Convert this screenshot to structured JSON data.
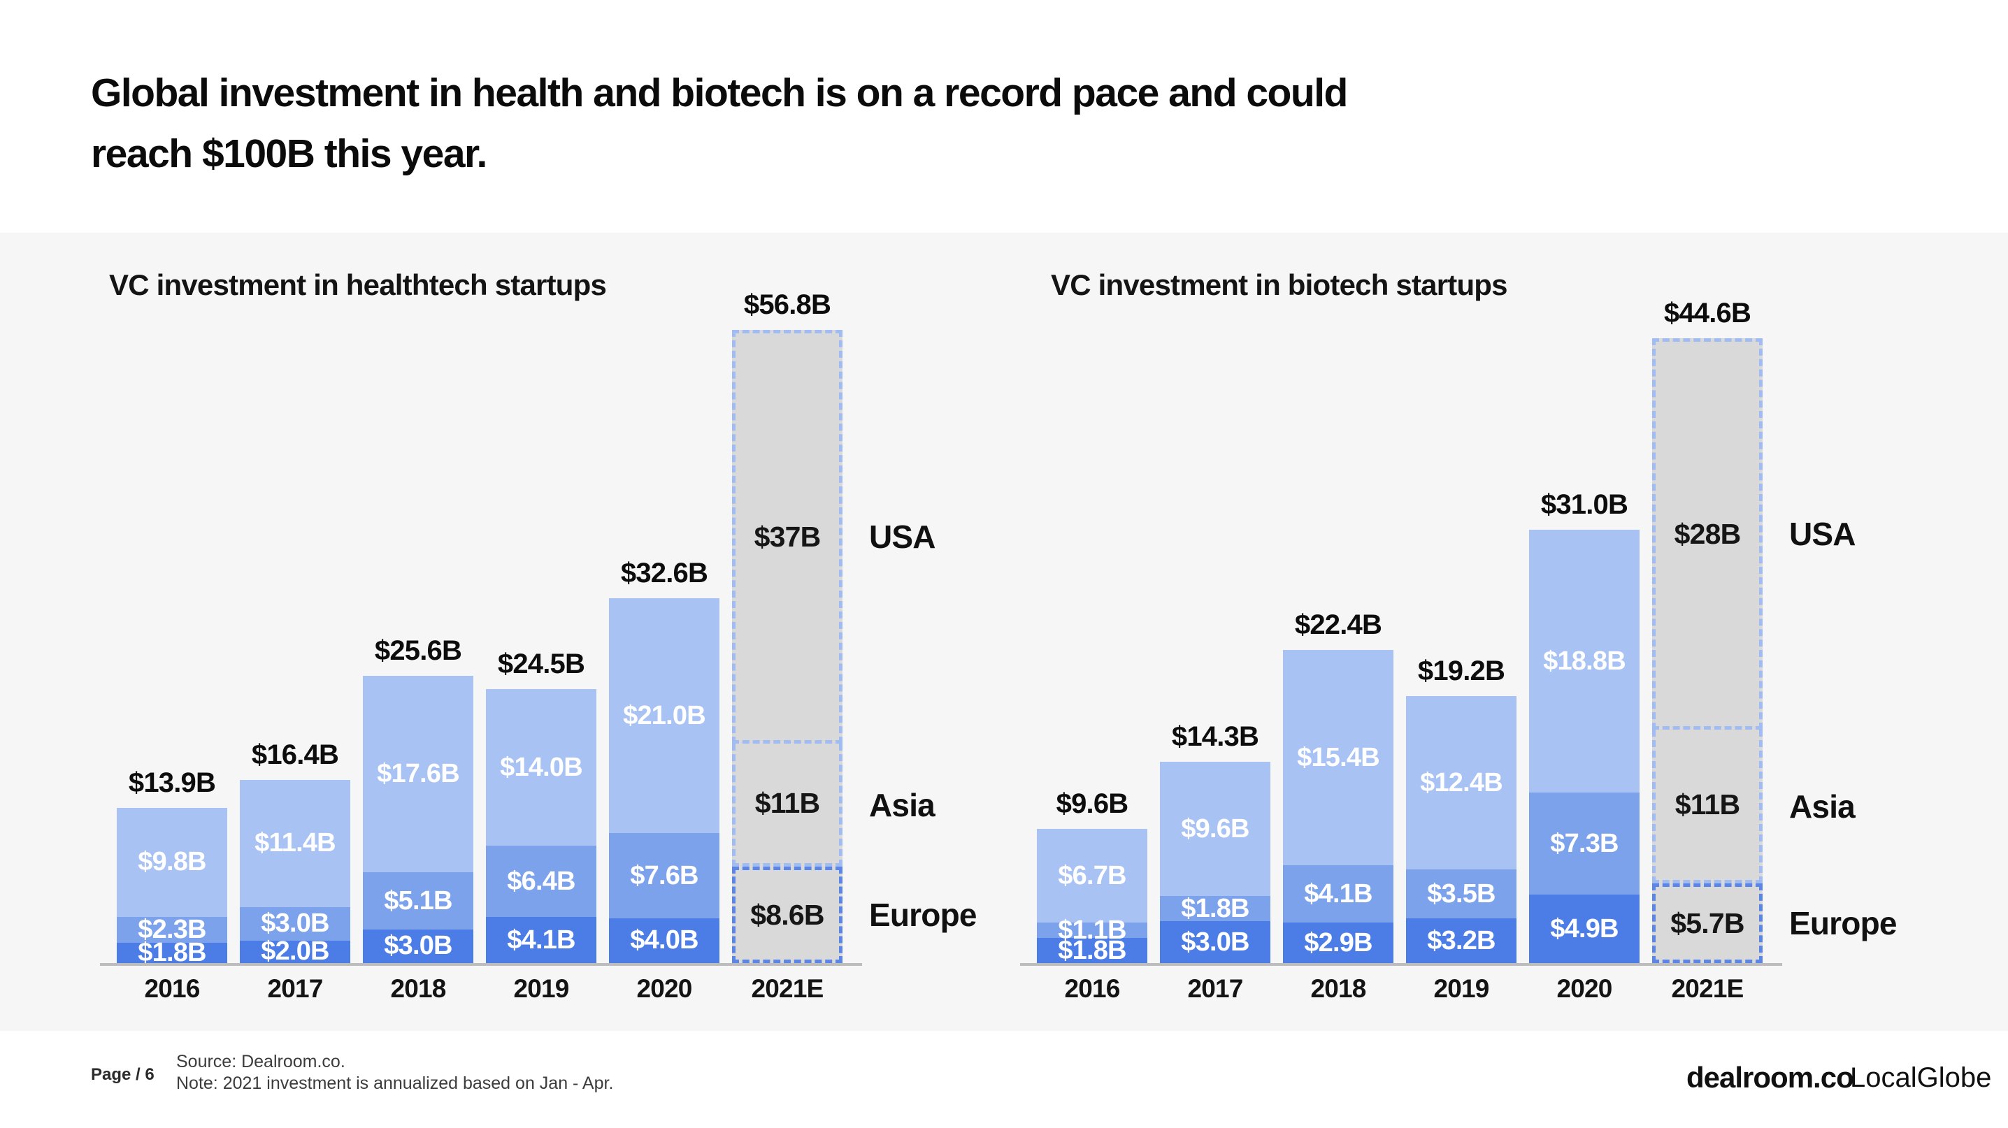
{
  "slide": {
    "title_lines": [
      "Global investment in health and biotech is on a record pace and could",
      "reach $100B this year."
    ]
  },
  "footer": {
    "page_label": "Page / 6",
    "source": "Source: Dealroom.co.",
    "note": "Note: 2021 investment is annualized based on Jan - Apr.",
    "logo_primary": "dealroom.co",
    "logo_secondary": "LocalGlobe"
  },
  "colors": {
    "usa_fill": "#a7c2f3",
    "asia_fill": "#7ca2ec",
    "europe_fill": "#4c7de6",
    "estimate_fill": "#d9d9d9",
    "estimate_border_light": "#a0bcf2",
    "estimate_border_strong": "#5b86e8",
    "band_background": "#f6f6f7",
    "axis_line": "#bdbdbd",
    "label_on_bar": "#ffffff",
    "text_primary": "#111111"
  },
  "chart_data": [
    {
      "id": "healthtech",
      "type": "bar",
      "stacked": true,
      "title": "VC investment in healthtech startups",
      "categories": [
        "2016",
        "2017",
        "2018",
        "2019",
        "2020",
        "2021E"
      ],
      "estimate_category": "2021E",
      "ylim": [
        0,
        56.8
      ],
      "grid": false,
      "legend_position": "right-of-estimate-bar",
      "series": [
        {
          "name": "USA",
          "values": [
            9.8,
            11.4,
            17.6,
            14.0,
            21.0,
            37
          ],
          "labels": [
            "$9.8B",
            "$11.4B",
            "$17.6B",
            "$14.0B",
            "$21.0B",
            "$37B"
          ]
        },
        {
          "name": "Asia",
          "values": [
            2.3,
            3.0,
            5.1,
            6.4,
            7.6,
            11
          ],
          "labels": [
            "$2.3B",
            "$3.0B",
            "$5.1B",
            "$6.4B",
            "$7.6B",
            "$11B"
          ]
        },
        {
          "name": "Europe",
          "values": [
            1.8,
            2.0,
            3.0,
            4.1,
            4.0,
            8.6
          ],
          "labels": [
            "$1.8B",
            "$2.0B",
            "$3.0B",
            "$4.1B",
            "$4.0B",
            "$8.6B"
          ]
        }
      ],
      "totals": [
        "$13.9B",
        "$16.4B",
        "$25.6B",
        "$24.5B",
        "$32.6B",
        "$56.8B"
      ]
    },
    {
      "id": "biotech",
      "type": "bar",
      "stacked": true,
      "title": "VC investment in biotech startups",
      "categories": [
        "2016",
        "2017",
        "2018",
        "2019",
        "2020",
        "2021E"
      ],
      "estimate_category": "2021E",
      "ylim": [
        0,
        44.6
      ],
      "grid": false,
      "legend_position": "right-of-estimate-bar",
      "series": [
        {
          "name": "USA",
          "values": [
            6.7,
            9.6,
            15.4,
            12.4,
            18.8,
            28
          ],
          "labels": [
            "$6.7B",
            "$9.6B",
            "$15.4B",
            "$12.4B",
            "$18.8B",
            "$28B"
          ]
        },
        {
          "name": "Asia",
          "values": [
            1.1,
            1.8,
            4.1,
            3.5,
            7.3,
            11
          ],
          "labels": [
            "$1.1B",
            "$1.8B",
            "$4.1B",
            "$3.5B",
            "$7.3B",
            "$11B"
          ]
        },
        {
          "name": "Europe",
          "values": [
            1.8,
            3.0,
            2.9,
            3.2,
            4.9,
            5.7
          ],
          "labels": [
            "$1.8B",
            "$3.0B",
            "$2.9B",
            "$3.2B",
            "$4.9B",
            "$5.7B"
          ]
        }
      ],
      "totals": [
        "$9.6B",
        "$14.3B",
        "$22.4B",
        "$19.2B",
        "$31.0B",
        "$44.6B"
      ]
    }
  ]
}
